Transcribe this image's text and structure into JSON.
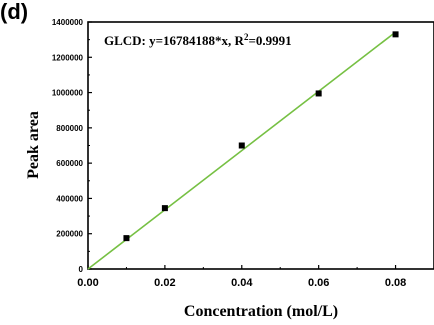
{
  "panel_label": "(d)",
  "annotation": {
    "prefix": "GLCD: y=16784188*x, R",
    "sup": "2",
    "suffix": "=0.9991"
  },
  "chart_data": {
    "type": "scatter",
    "title": "",
    "xlabel": "Concentration (mol/L)",
    "ylabel": "Peak area",
    "xlim": [
      0.0,
      0.09
    ],
    "ylim": [
      0,
      1400000
    ],
    "x_ticks": [
      "0.00",
      "0.02",
      "0.04",
      "0.06",
      "0.08"
    ],
    "y_ticks": [
      "0",
      "200000",
      "400000",
      "600000",
      "800000",
      "1000000",
      "1200000",
      "1400000"
    ],
    "grid": false,
    "series": [
      {
        "x": [
          0.01,
          0.02,
          0.04,
          0.06,
          0.08
        ],
        "y": [
          175000,
          345000,
          700000,
          995000,
          1330000
        ],
        "marker_color": "#000000"
      }
    ],
    "fit": {
      "slope": 16784188,
      "x_range": [
        0.0,
        0.08
      ],
      "color": "#76c043"
    }
  }
}
